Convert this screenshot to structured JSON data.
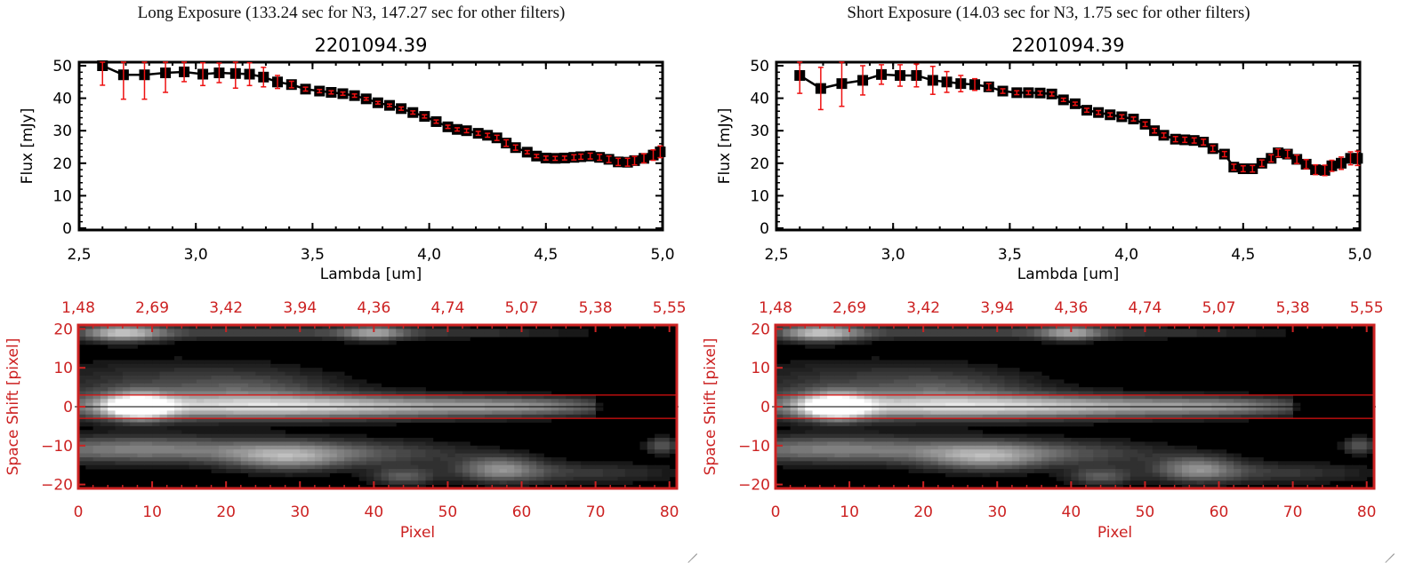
{
  "colors": {
    "axis_dark": "#000000",
    "axis_red": "#cc2222",
    "errorbar": "#ee1111",
    "marker": "#000000",
    "aperture_line": "#dd1111"
  },
  "chart_data": [
    {
      "type": "line",
      "panel": "left",
      "header": "Long Exposure (133.24 sec for N3, 147.27 sec for other filters)",
      "title": "2201094.39",
      "xlabel": "Lambda [um]",
      "ylabel": "Flux [mJy]",
      "xlim": [
        2.5,
        5.0
      ],
      "ylim": [
        0,
        50
      ],
      "xticks": [
        "2.5",
        "3.0",
        "3.5",
        "4.0",
        "4.5",
        "5.0"
      ],
      "yticks": [
        "0",
        "10",
        "20",
        "30",
        "40",
        "50"
      ],
      "grid": false,
      "x": [
        2.6,
        2.69,
        2.78,
        2.87,
        2.95,
        3.03,
        3.1,
        3.17,
        3.23,
        3.29,
        3.35,
        3.41,
        3.47,
        3.53,
        3.58,
        3.63,
        3.68,
        3.73,
        3.78,
        3.83,
        3.88,
        3.93,
        3.98,
        4.03,
        4.08,
        4.12,
        4.16,
        4.21,
        4.25,
        4.29,
        4.33,
        4.37,
        4.42,
        4.46,
        4.5,
        4.54,
        4.58,
        4.62,
        4.65,
        4.69,
        4.73,
        4.77,
        4.81,
        4.85,
        4.88,
        4.92,
        4.96,
        4.99
      ],
      "y": [
        50.0,
        47.2,
        47.2,
        47.8,
        48.1,
        47.4,
        47.8,
        47.6,
        47.4,
        46.5,
        45.0,
        44.2,
        42.8,
        42.2,
        41.8,
        41.4,
        40.8,
        39.8,
        38.6,
        37.8,
        36.8,
        35.6,
        34.4,
        32.8,
        31.2,
        30.4,
        30.0,
        29.2,
        28.6,
        27.8,
        26.2,
        24.8,
        23.4,
        22.2,
        21.6,
        21.5,
        21.6,
        21.8,
        22.0,
        22.2,
        21.8,
        21.2,
        20.4,
        20.3,
        20.8,
        21.5,
        22.5,
        23.5
      ],
      "yerr": [
        6.0,
        7.5,
        7.5,
        6.0,
        3.0,
        3.5,
        3.0,
        4.5,
        3.5,
        3.0,
        2.0,
        1.0,
        0.6,
        0.5,
        0.5,
        0.5,
        0.5,
        0.4,
        0.4,
        0.4,
        0.5,
        0.5,
        0.5,
        0.5,
        0.5,
        0.5,
        0.6,
        0.6,
        0.6,
        0.8,
        1.0,
        0.8,
        0.5,
        0.5,
        0.6,
        0.6,
        0.6,
        0.8,
        0.8,
        0.9,
        0.9,
        1.0,
        1.1,
        1.2,
        1.3,
        1.4,
        1.6,
        1.8
      ]
    },
    {
      "type": "line",
      "panel": "right",
      "header": "Short Exposure (14.03 sec for N3, 1.75 sec for other filters)",
      "title": "2201094.39",
      "xlabel": "Lambda [um]",
      "ylabel": "Flux [mJy]",
      "xlim": [
        2.5,
        5.0
      ],
      "ylim": [
        0,
        50
      ],
      "xticks": [
        "2.5",
        "3.0",
        "3.5",
        "4.0",
        "4.5",
        "5.0"
      ],
      "yticks": [
        "0",
        "10",
        "20",
        "30",
        "40",
        "50"
      ],
      "grid": false,
      "x": [
        2.6,
        2.69,
        2.78,
        2.87,
        2.95,
        3.03,
        3.1,
        3.17,
        3.23,
        3.29,
        3.35,
        3.41,
        3.47,
        3.53,
        3.58,
        3.63,
        3.68,
        3.73,
        3.78,
        3.83,
        3.88,
        3.93,
        3.98,
        4.03,
        4.08,
        4.12,
        4.16,
        4.21,
        4.25,
        4.29,
        4.33,
        4.37,
        4.42,
        4.46,
        4.5,
        4.54,
        4.58,
        4.62,
        4.65,
        4.69,
        4.73,
        4.77,
        4.81,
        4.85,
        4.88,
        4.92,
        4.96,
        4.99
      ],
      "y": [
        47.0,
        43.0,
        44.5,
        45.5,
        47.3,
        47.0,
        47.0,
        45.5,
        45.0,
        44.5,
        44.2,
        43.5,
        42.2,
        41.7,
        41.7,
        41.6,
        41.3,
        39.5,
        38.3,
        36.3,
        35.6,
        34.9,
        34.3,
        33.6,
        32.0,
        30.0,
        28.6,
        27.4,
        27.2,
        27.0,
        26.5,
        24.5,
        22.8,
        18.8,
        18.3,
        18.3,
        20.0,
        21.5,
        23.2,
        22.8,
        21.2,
        19.7,
        18.0,
        17.8,
        19.2,
        20.0,
        21.5,
        21.5
      ],
      "yerr": [
        5.5,
        6.5,
        7.0,
        4.5,
        3.0,
        3.3,
        3.5,
        4.3,
        3.2,
        2.5,
        1.8,
        1.0,
        0.7,
        0.6,
        0.6,
        0.6,
        0.6,
        0.5,
        0.5,
        0.6,
        0.6,
        0.6,
        0.6,
        0.6,
        0.7,
        0.7,
        0.7,
        0.8,
        0.8,
        0.8,
        0.9,
        0.9,
        0.8,
        0.9,
        0.9,
        1.0,
        1.0,
        1.1,
        1.2,
        1.2,
        1.3,
        1.4,
        1.5,
        1.6,
        1.7,
        1.9,
        2.0,
        2.2
      ]
    },
    {
      "type": "heatmap",
      "panel": "left",
      "xlabel": "Pixel",
      "ylabel": "Space Shift [pixel]",
      "xlim": [
        0,
        81
      ],
      "ylim": [
        -21,
        21
      ],
      "xticks": [
        "0",
        "10",
        "20",
        "30",
        "40",
        "50",
        "60",
        "70",
        "80"
      ],
      "yticks": [
        "-20",
        "-10",
        "0",
        "10",
        "20"
      ],
      "top_axis_ticks": [
        "1.48",
        "2.69",
        "3.42",
        "3.94",
        "4.36",
        "4.74",
        "5.07",
        "5.38",
        "5.55"
      ],
      "aperture_lines": [
        3,
        -3
      ],
      "center_line": 0
    },
    {
      "type": "heatmap",
      "panel": "right",
      "xlabel": "Pixel",
      "ylabel": "Space Shift [pixel]",
      "xlim": [
        0,
        81
      ],
      "ylim": [
        -21,
        21
      ],
      "xticks": [
        "0",
        "10",
        "20",
        "30",
        "40",
        "50",
        "60",
        "70",
        "80"
      ],
      "yticks": [
        "-20",
        "-10",
        "0",
        "10",
        "20"
      ],
      "top_axis_ticks": [
        "1.48",
        "2.69",
        "3.42",
        "3.94",
        "4.36",
        "4.74",
        "5.07",
        "5.38",
        "5.55"
      ],
      "aperture_lines": [
        3,
        -3
      ],
      "center_line": 0
    }
  ]
}
